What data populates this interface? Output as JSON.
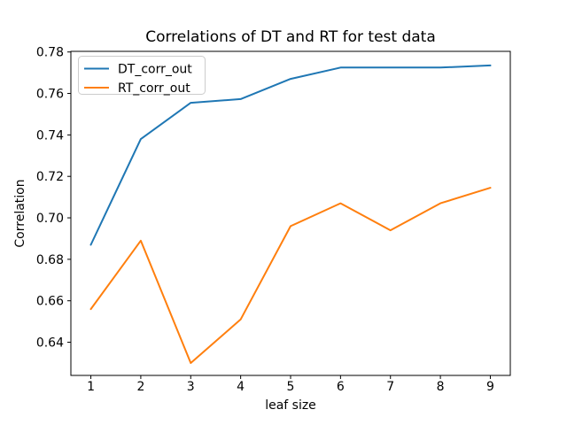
{
  "chart_data": {
    "type": "line",
    "title": "Correlations of DT and RT for test data",
    "xlabel": "leaf size",
    "ylabel": "Correlation",
    "x": [
      1,
      2,
      3,
      4,
      5,
      6,
      7,
      8,
      9
    ],
    "series": [
      {
        "name": "DT_corr_out",
        "color": "#1f77b4",
        "values": [
          0.687,
          0.738,
          0.7555,
          0.7573,
          0.767,
          0.7725,
          0.7725,
          0.7725,
          0.7735
        ]
      },
      {
        "name": "RT_corr_out",
        "color": "#ff7f0e",
        "values": [
          0.656,
          0.689,
          0.63,
          0.651,
          0.696,
          0.707,
          0.694,
          0.707,
          0.7145
        ]
      }
    ],
    "xlim": [
      0.6,
      9.4
    ],
    "ylim": [
      0.624,
      0.7803
    ],
    "xticks": [
      1,
      2,
      3,
      4,
      5,
      6,
      7,
      8,
      9
    ],
    "yticks": [
      0.64,
      0.66,
      0.68,
      0.7,
      0.72,
      0.74,
      0.76,
      0.78
    ],
    "grid": false,
    "legend_position": "upper left",
    "axis_color": "#000000",
    "background_color": "#ffffff",
    "legend_border_color": "#cccccc"
  }
}
